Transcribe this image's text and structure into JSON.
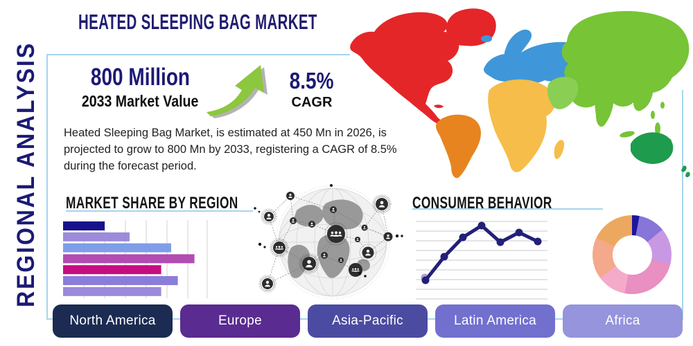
{
  "header": {
    "title": "HEATED SLEEPING BAG MARKET",
    "vertical_label": "REGIONAL ANALYSIS"
  },
  "stats": {
    "market_value": "800 Million",
    "market_value_caption": "2033 Market Value",
    "cagr_value": "8.5%",
    "cagr_caption": "CAGR"
  },
  "description": "Heated Sleeping Bag Market, is estimated at 450 Mn in 2026, is projected to grow to 800 Mn by 2033, registering a CAGR of 8.5% during the forecast period.",
  "sections": {
    "market_share_title": "MARKET SHARE BY REGION",
    "consumer_behavior_title": "CONSUMER BEHAVIOR"
  },
  "regions": [
    {
      "label": "North America",
      "color": "#1b2b52"
    },
    {
      "label": "Europe",
      "color": "#5a2b90"
    },
    {
      "label": "Asia-Pacific",
      "color": "#4b4ba1"
    },
    {
      "label": "Latin America",
      "color": "#7170cf"
    },
    {
      "label": "Africa",
      "color": "#9594dc"
    }
  ],
  "chart_data": [
    {
      "type": "bar",
      "title": "MARKET SHARE BY REGION",
      "orientation": "horizontal",
      "values": [
        25,
        40,
        65,
        79,
        59,
        69,
        59
      ],
      "value_unit": "relative share, percent of axis (no tick labels shown)",
      "bar_colors": [
        "#17128b",
        "#9d8bda",
        "#7f9de8",
        "#b14cb2",
        "#c70d80",
        "#8b7ed9",
        "#9b89db"
      ],
      "grid": "vertical-lines",
      "axis_labels_visible": false
    },
    {
      "type": "line",
      "title": "CONSUMER BEHAVIOR",
      "x": [
        1,
        2,
        3,
        4,
        5,
        6,
        7
      ],
      "values": [
        18,
        52,
        80,
        97,
        73,
        87,
        74
      ],
      "ylim": [
        0,
        110
      ],
      "line_color": "#232078",
      "marker": "circle",
      "accent_dot_color": "#b49bd8",
      "grid": "horizontal-lines",
      "axis_labels_visible": false
    },
    {
      "type": "pie",
      "title": "",
      "donut": true,
      "segments": [
        {
          "value": 3,
          "color": "#1b15a0"
        },
        {
          "value": 11,
          "color": "#8775d7"
        },
        {
          "value": 15,
          "color": "#c998e3"
        },
        {
          "value": 24,
          "color": "#e98fc2"
        },
        {
          "value": 12,
          "color": "#f3abc9"
        },
        {
          "value": 17,
          "color": "#f4a88c"
        },
        {
          "value": 18,
          "color": "#eda860"
        }
      ]
    }
  ],
  "map_colors": {
    "north_america": "#e42629",
    "greenland": "#e42629",
    "cuba": "#e42629",
    "south_america": "#e8841f",
    "europe": "#3f97d9",
    "united_kingdom": "#3f97d9",
    "iceland": "#3f97d9",
    "africa": "#f6bd4a",
    "madagascar": "#f6bd4a",
    "asia": "#77c437",
    "india": "#77c437",
    "japan": "#77c437",
    "southeast_asia": "#77c437",
    "middle_east": "#8bce54",
    "australia": "#1f9b4d",
    "new_zealand": "#1f9b4d"
  },
  "theme": {
    "navy_text": "#1c1a75",
    "heading_black": "#141414",
    "body_text": "#222222",
    "panel_border": "#a5d6ec",
    "arrow_green": "#8dc63f",
    "arrow_shadow": "#9a9a9a",
    "gridline": "#d0d0d6"
  }
}
